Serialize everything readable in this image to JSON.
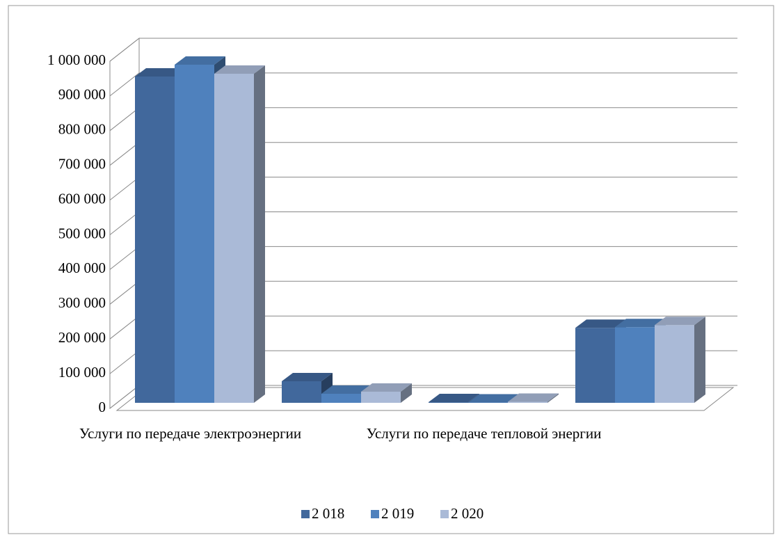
{
  "chart_data": {
    "type": "bar3d",
    "categories": [
      "Услуги по передаче электроэнергии",
      null,
      "Услуги по передаче тепловой энергии",
      null
    ],
    "series": [
      {
        "name": "2 018",
        "color": "#41689c",
        "values": [
          940000,
          62000,
          2000,
          216000
        ]
      },
      {
        "name": "2 019",
        "color": "#4f81bd",
        "values": [
          974000,
          26000,
          1000,
          218000
        ]
      },
      {
        "name": "2 020",
        "color": "#aabad7",
        "values": [
          948000,
          32000,
          3000,
          224000
        ]
      }
    ],
    "ylim": [
      0,
      1000000
    ],
    "yticks": [
      0,
      {
        "value": 100000,
        "label": "100 000"
      },
      {
        "value": 200000,
        "label": "200 000"
      },
      {
        "value": 300000,
        "label": "300 000"
      },
      {
        "value": 400000,
        "label": "400 000"
      },
      {
        "value": 500000,
        "label": "500 000"
      },
      {
        "value": 600000,
        "label": "600 000"
      },
      {
        "value": 700000,
        "label": "700 000"
      },
      {
        "value": 800000,
        "label": "800 000"
      },
      {
        "value": 900000,
        "label": "900 000"
      },
      {
        "value": 1000000,
        "label": "1 000 000"
      }
    ],
    "grid": true,
    "legend": "bottom"
  }
}
